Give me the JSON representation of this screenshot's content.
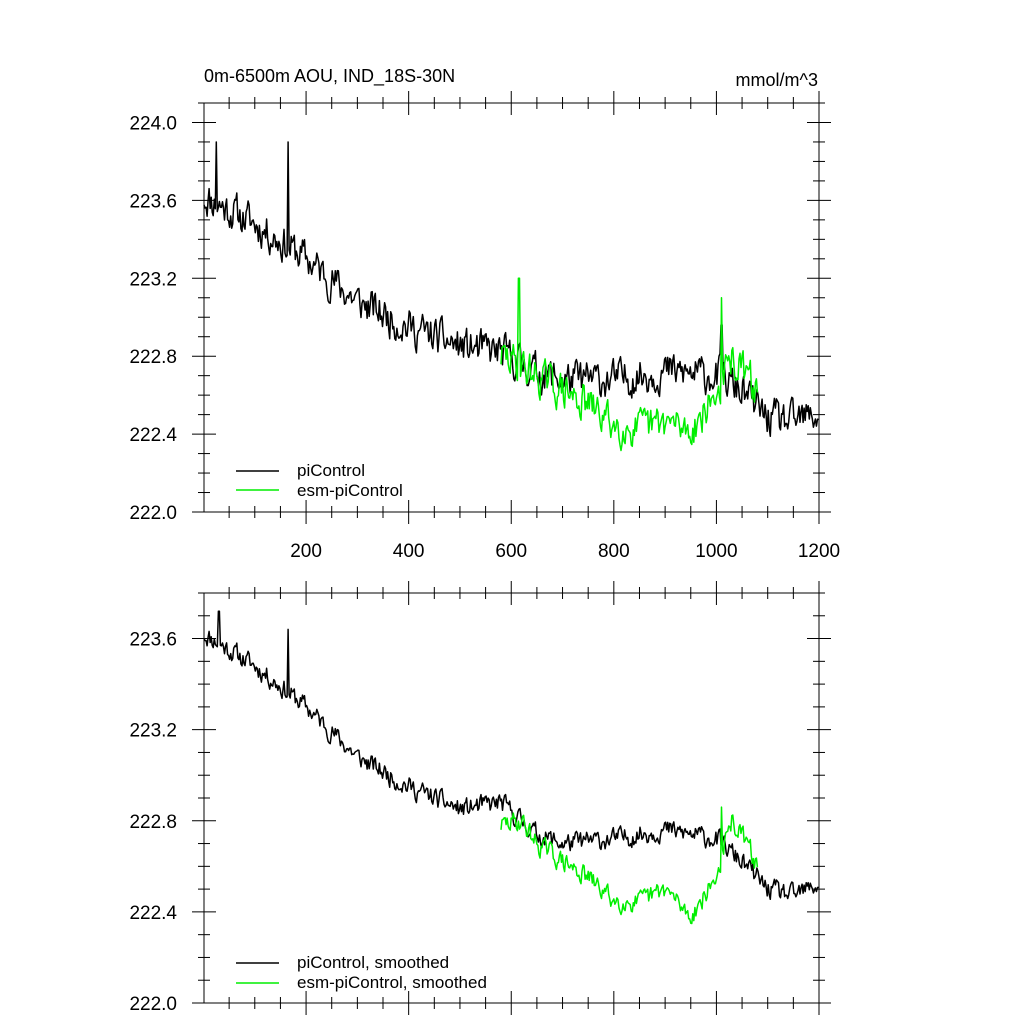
{
  "chart_data": [
    {
      "type": "line",
      "title_left": "0m-6500m AOU, IND_18S-30N",
      "title_right": "mmol/m^3",
      "xlim": [
        1,
        1200
      ],
      "ylim": [
        222.0,
        224.1
      ],
      "x_ticks": [
        200,
        400,
        600,
        800,
        1000,
        1200
      ],
      "y_ticks": [
        222.0,
        222.4,
        222.8,
        223.2,
        223.6,
        224.0
      ],
      "y_tick_labels": [
        "222.0",
        "222.4",
        "222.8",
        "223.2",
        "223.6",
        "224.0"
      ],
      "x_tick_labels": [
        "200",
        "400",
        "600",
        "800",
        "1000",
        "1200"
      ],
      "legend": [
        "piControl",
        "esm-piControl"
      ],
      "series": [
        {
          "name": "piControl",
          "color": "#000000",
          "x_range": [
            1,
            1200
          ],
          "noise": 0.15,
          "seed": 11,
          "spikes": [
            [
              165,
              223.9
            ],
            [
              25,
              223.9
            ],
            [
              1010,
              222.96
            ]
          ],
          "trend_x": [
            1,
            100,
            200,
            300,
            400,
            500,
            580,
            650,
            700,
            800,
            900,
            1000,
            1050,
            1100,
            1150,
            1200
          ],
          "trend_y": [
            223.62,
            223.48,
            223.3,
            223.08,
            222.95,
            222.85,
            222.82,
            222.72,
            222.68,
            222.68,
            222.72,
            222.7,
            222.62,
            222.48,
            222.46,
            222.5
          ]
        },
        {
          "name": "esm-piControl",
          "color": "#00ee00",
          "x_range": [
            580,
            1080
          ],
          "noise": 0.15,
          "seed": 29,
          "spikes": [
            [
              1010,
              223.1
            ],
            [
              615,
              223.2
            ]
          ],
          "trend_x": [
            580,
            620,
            650,
            700,
            750,
            800,
            850,
            900,
            950,
            1000,
            1030,
            1060,
            1080
          ],
          "trend_y": [
            222.8,
            222.75,
            222.7,
            222.62,
            222.55,
            222.45,
            222.42,
            222.46,
            222.42,
            222.6,
            222.78,
            222.7,
            222.62
          ]
        }
      ]
    },
    {
      "type": "line",
      "xlim": [
        1,
        1200
      ],
      "ylim": [
        222.0,
        223.8
      ],
      "x_ticks": [
        200,
        400,
        600,
        800,
        1000,
        1200
      ],
      "y_ticks": [
        222.0,
        222.4,
        222.8,
        223.2,
        223.6
      ],
      "y_tick_labels": [
        "222.0",
        "222.4",
        "222.8",
        "223.2",
        "223.6"
      ],
      "legend": [
        "piControl, smoothed",
        "esm-piControl, smoothed"
      ],
      "series": [
        {
          "name": "piControl, smoothed",
          "color": "#000000",
          "x_range": [
            1,
            1200
          ],
          "noise": 0.07,
          "seed": 11,
          "spikes": [
            [
              165,
              223.64
            ],
            [
              30,
              223.72
            ]
          ],
          "trend_x": [
            1,
            100,
            200,
            300,
            400,
            500,
            580,
            650,
            700,
            800,
            900,
            1000,
            1050,
            1100,
            1150,
            1200
          ],
          "trend_y": [
            223.62,
            223.48,
            223.3,
            223.08,
            222.95,
            222.85,
            222.88,
            222.74,
            222.7,
            222.72,
            222.76,
            222.72,
            222.62,
            222.5,
            222.47,
            222.52
          ]
        },
        {
          "name": "esm-piControl, smoothed",
          "color": "#00ee00",
          "x_range": [
            580,
            1080
          ],
          "noise": 0.07,
          "seed": 29,
          "spikes": [
            [
              1010,
              222.86
            ]
          ],
          "trend_x": [
            580,
            620,
            650,
            700,
            750,
            800,
            850,
            900,
            950,
            1000,
            1030,
            1060,
            1080
          ],
          "trend_y": [
            222.78,
            222.8,
            222.7,
            222.62,
            222.55,
            222.45,
            222.44,
            222.5,
            222.38,
            222.55,
            222.8,
            222.7,
            222.6
          ]
        }
      ]
    }
  ]
}
